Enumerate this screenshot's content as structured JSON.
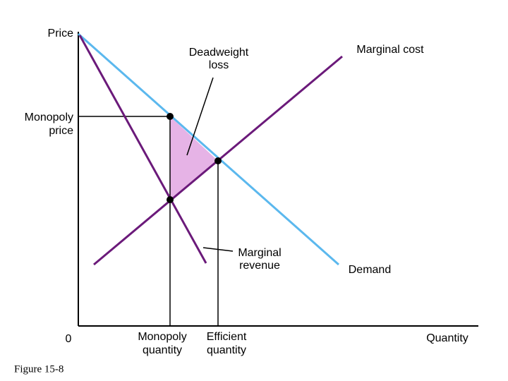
{
  "axes": {
    "y_label": "Price",
    "x_label": "Quantity",
    "origin": "0"
  },
  "curves": {
    "marginal_cost": "Marginal cost",
    "demand": "Demand",
    "marginal_revenue": [
      "Marginal",
      "revenue"
    ]
  },
  "deadweight_loss": [
    "Deadweight",
    "loss"
  ],
  "monopoly_price": [
    "Monopoly",
    "price"
  ],
  "monopoly_quantity": [
    "Monopoly",
    "quantity"
  ],
  "efficient_quantity": [
    "Efficient",
    "quantity"
  ],
  "caption": "Figure 15-8"
}
